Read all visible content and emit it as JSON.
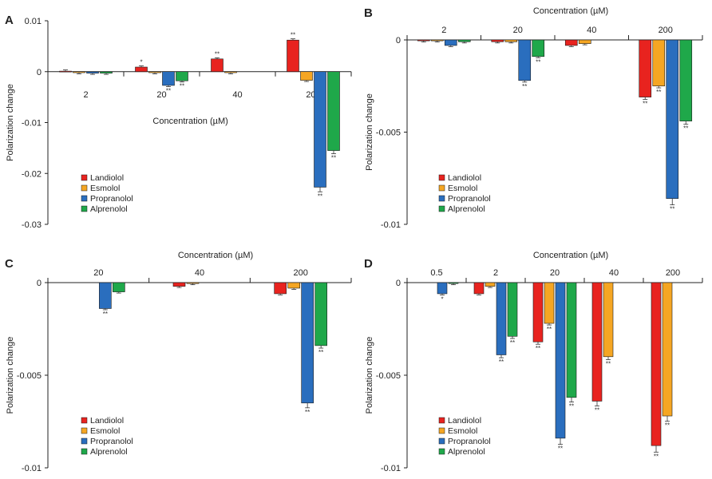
{
  "colors": {
    "Landiolol": "#e8231f",
    "Esmolol": "#f5a623",
    "Propranolol": "#2a6ebe",
    "Alprenolol": "#1fa84a"
  },
  "chart_data": [
    {
      "panel": "A",
      "type": "bar",
      "title": "",
      "xlabel": "Concentration (µM)",
      "ylabel": "Polarization change",
      "ylim": [
        -0.03,
        0.01
      ],
      "yticks": [
        0.01,
        0,
        -0.01,
        -0.02,
        -0.03
      ],
      "ytick_labels": [
        "0.01",
        "0",
        "-0.01",
        "-0.02",
        "-0.03"
      ],
      "categories": [
        "2",
        "20",
        "40",
        "200"
      ],
      "legend": "bottom-left",
      "series": [
        {
          "name": "Landiolol",
          "values": [
            0.0001,
            0.0009,
            0.0025,
            0.0062
          ],
          "sig": [
            "",
            "*",
            "**",
            "**"
          ]
        },
        {
          "name": "Esmolol",
          "values": [
            -0.0002,
            -0.0002,
            -0.0002,
            -0.0017
          ],
          "sig": [
            "",
            "",
            "",
            ""
          ]
        },
        {
          "name": "Propranolol",
          "values": [
            -0.0003,
            -0.0027,
            null,
            -0.0227
          ],
          "sig": [
            "",
            "**",
            "",
            "**"
          ]
        },
        {
          "name": "Alprenolol",
          "values": [
            -0.0003,
            -0.0018,
            null,
            -0.0155
          ],
          "sig": [
            "",
            "**",
            "",
            "**"
          ]
        }
      ]
    },
    {
      "panel": "B",
      "type": "bar",
      "xlabel": "Concentration (µM)",
      "ylabel": "Polarization change",
      "ylim": [
        -0.01,
        0
      ],
      "yticks": [
        0,
        -0.005,
        -0.01
      ],
      "ytick_labels": [
        "0",
        "-0.005",
        "-0.01"
      ],
      "categories": [
        "2",
        "20",
        "40",
        "200"
      ],
      "legend": "bottom-left",
      "series": [
        {
          "name": "Landiolol",
          "values": [
            -5e-05,
            -0.0001,
            -0.0003,
            -0.0031
          ],
          "sig": [
            "",
            "",
            "",
            "**"
          ]
        },
        {
          "name": "Esmolol",
          "values": [
            -5e-05,
            -0.0001,
            -0.0002,
            -0.0025
          ],
          "sig": [
            "",
            "",
            "",
            "**"
          ]
        },
        {
          "name": "Propranolol",
          "values": [
            -0.0003,
            -0.0022,
            null,
            -0.0086
          ],
          "sig": [
            "",
            "**",
            "",
            "**"
          ]
        },
        {
          "name": "Alprenolol",
          "values": [
            -0.0001,
            -0.0009,
            null,
            -0.0044
          ],
          "sig": [
            "",
            "**",
            "",
            "**"
          ]
        }
      ]
    },
    {
      "panel": "C",
      "type": "bar",
      "xlabel": "Concentration (µM)",
      "ylabel": "Polarization change",
      "ylim": [
        -0.01,
        0
      ],
      "yticks": [
        0,
        -0.005,
        -0.01
      ],
      "ytick_labels": [
        "0",
        "-0.005",
        "-0.01"
      ],
      "categories": [
        "20",
        "40",
        "200"
      ],
      "legend": "bottom-left",
      "series": [
        {
          "name": "Landiolol",
          "values": [
            null,
            -0.0002,
            -0.0006
          ],
          "sig": [
            "",
            "",
            ""
          ]
        },
        {
          "name": "Esmolol",
          "values": [
            null,
            -5e-05,
            -0.0003
          ],
          "sig": [
            "",
            "",
            ""
          ]
        },
        {
          "name": "Propranolol",
          "values": [
            -0.0014,
            null,
            -0.0065
          ],
          "sig": [
            "**",
            "",
            "**"
          ]
        },
        {
          "name": "Alprenolol",
          "values": [
            -0.0005,
            null,
            -0.0034
          ],
          "sig": [
            "",
            "",
            "**"
          ]
        }
      ]
    },
    {
      "panel": "D",
      "type": "bar",
      "xlabel": "Concentration (µM)",
      "ylabel": "Polarization change",
      "ylim": [
        -0.01,
        0
      ],
      "yticks": [
        0,
        -0.005,
        -0.01
      ],
      "ytick_labels": [
        "0",
        "-0.005",
        "-0.01"
      ],
      "categories": [
        "0.5",
        "2",
        "20",
        "40",
        "200"
      ],
      "legend": "bottom-left",
      "series": [
        {
          "name": "Landiolol",
          "values": [
            null,
            -0.0006,
            -0.0032,
            -0.0064,
            -0.0088
          ],
          "sig": [
            "",
            "",
            "**",
            "**",
            "**"
          ]
        },
        {
          "name": "Esmolol",
          "values": [
            null,
            -0.0002,
            -0.0022,
            -0.004,
            -0.0072
          ],
          "sig": [
            "",
            "",
            "**",
            "**",
            "**"
          ]
        },
        {
          "name": "Propranolol",
          "values": [
            -0.0006,
            -0.0039,
            -0.0084,
            null,
            null
          ],
          "sig": [
            "*",
            "**",
            "**",
            "",
            ""
          ]
        },
        {
          "name": "Alprenolol",
          "values": [
            -5e-05,
            -0.0029,
            -0.0062,
            null,
            null
          ],
          "sig": [
            "",
            "**",
            "**",
            "",
            ""
          ]
        }
      ]
    }
  ]
}
